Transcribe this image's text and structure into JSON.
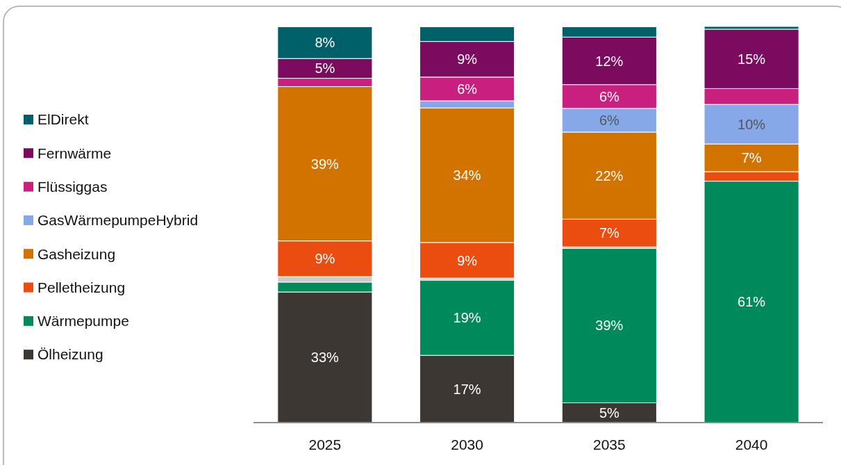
{
  "chart_data": {
    "type": "bar",
    "stacked": true,
    "legend": "left",
    "categories": [
      "2025",
      "2030",
      "2035",
      "2040"
    ],
    "series": [
      {
        "name": "Ölheizung",
        "color": "#3d3733",
        "values": [
          33,
          17,
          5,
          0
        ],
        "value_labels": [
          "33%",
          "17%",
          "5%",
          null
        ]
      },
      {
        "name": "Wärmepumpe",
        "color": "#00895a",
        "values": [
          2.5,
          19,
          39,
          61
        ],
        "value_labels": [
          null,
          "19%",
          "39%",
          "61%"
        ]
      },
      {
        "color": "#cccccc",
        "values": [
          1.4,
          0.5,
          0.4,
          0
        ]
      },
      {
        "name": "Pelletheizung",
        "color": "#eb4d10",
        "values": [
          9,
          9,
          7,
          2.4
        ],
        "value_labels": [
          "9%",
          "9%",
          "7%",
          null
        ]
      },
      {
        "name": "Gasheizung",
        "color": "#d27300",
        "values": [
          39,
          34,
          22,
          7
        ],
        "value_labels": [
          "39%",
          "34%",
          "22%",
          "7%"
        ]
      },
      {
        "name": "GasWärmepumpeHybrid",
        "color": "#86a8e8",
        "values": [
          0,
          1.8,
          6,
          10
        ],
        "value_labels": [
          null,
          null,
          "6%",
          "10%"
        ]
      },
      {
        "name": "Flüssiggas",
        "color": "#c8207e",
        "values": [
          2.1,
          6,
          6,
          4
        ],
        "value_labels": [
          null,
          "6%",
          "6%",
          null
        ]
      },
      {
        "name": "Fernwärme",
        "color": "#7a0b5e",
        "values": [
          5,
          9,
          12,
          15
        ],
        "value_labels": [
          "5%",
          "9%",
          "12%",
          "15%"
        ]
      },
      {
        "name": "ElDirekt",
        "color": "#00606a",
        "values": [
          8,
          3.7,
          2.6,
          0.7
        ],
        "value_labels": [
          "8%",
          null,
          null,
          null
        ]
      }
    ]
  }
}
